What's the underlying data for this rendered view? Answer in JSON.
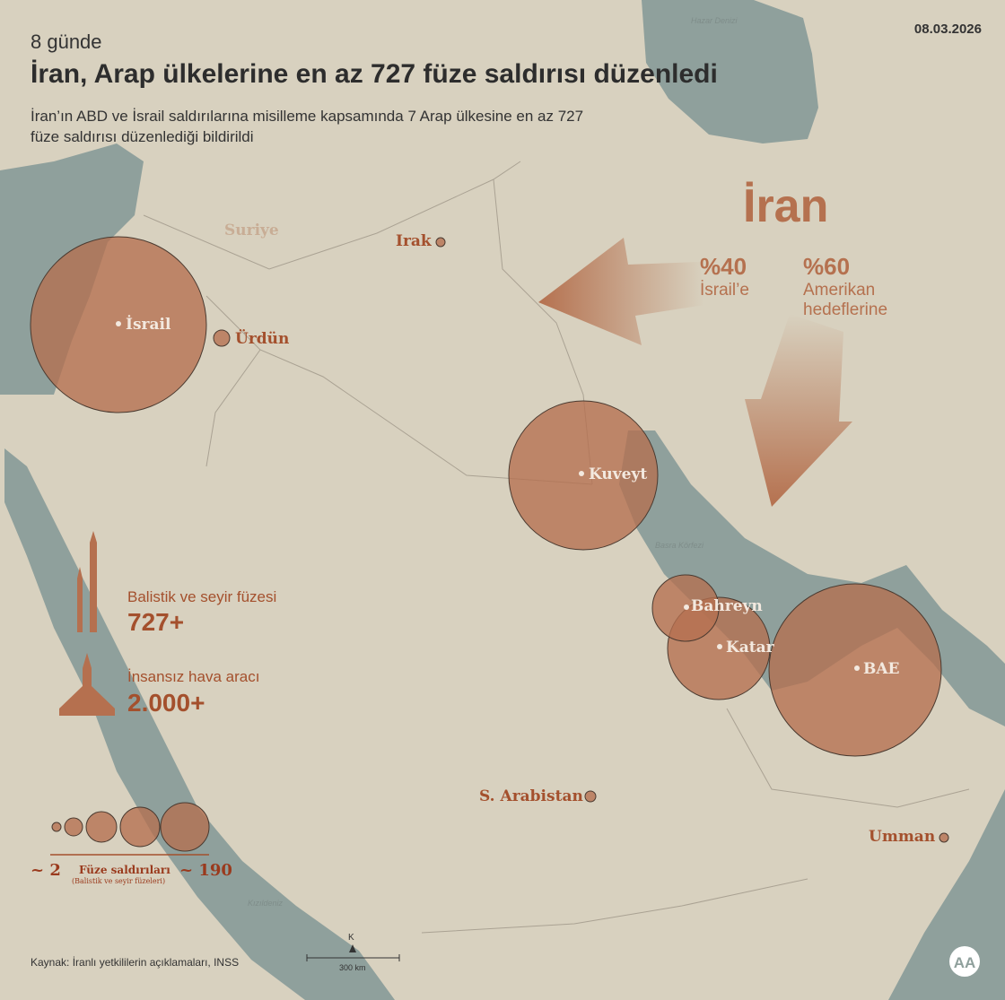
{
  "header": {
    "kicker": "8 günde",
    "title": "İran, Arap ülkelerine en az 727 füze saldırısı düzenledi",
    "subtitle": "İran’ın ABD ve İsrail saldırılarına misilleme kapsamında 7 Arap ülkesine en az 727 füze saldırısı düzenlediği bildirildi",
    "date": "08.03.2026"
  },
  "map": {
    "labels": {
      "syria": "Suriye",
      "iraq": "Irak",
      "jordan": "Ürdün",
      "israel": "İsrail",
      "kuwait": "Kuveyt",
      "bahrain": "Bahreyn",
      "qatar": "Katar",
      "uae": "BAE",
      "saudi": "S. Arabistan",
      "oman": "Umman",
      "caspian": "Hazar Denizi",
      "gulf": "Basra Körfezi",
      "redsea": "Kızıldeniz"
    },
    "colors": {
      "land": "#d8d1bf",
      "sea": "#8fa09c",
      "circle": "#b5704f",
      "label": "#a4502d"
    }
  },
  "iran_panel": {
    "title": "İran",
    "israel_pct": "%40",
    "israel_label": "İsrail’e",
    "us_pct": "%60",
    "us_label_1": "Amerikan",
    "us_label_2": "hedeflerine"
  },
  "stats": {
    "missile_label": "Balistik ve seyir füzesi",
    "missile_value": "727+",
    "drone_label": "İnsansız hava aracı",
    "drone_value": "2.000+"
  },
  "legend": {
    "min": "~ 2",
    "max": "~ 190",
    "title": "Füze saldırıları",
    "subtitle": "(Balistik ve seyir füzeleri)"
  },
  "scale": {
    "north": "K",
    "distance": "300 km"
  },
  "source": "Kaynak: İranlı yetkililerin açıklamaları, INSS",
  "logo": "AA"
}
